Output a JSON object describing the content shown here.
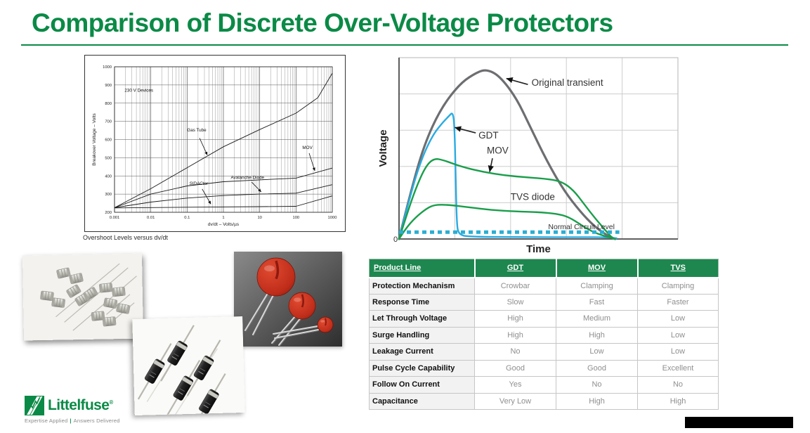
{
  "slide": {
    "title": "Comparison of Discrete Over-Voltage Protectors"
  },
  "colors": {
    "accent": "#0a8a46",
    "table_header": "#1e8750",
    "curve_gray": "#6d6e71",
    "curve_blue": "#29abe2",
    "curve_green": "#1a9e4b",
    "dotted_teal": "#2aaed2"
  },
  "chart_data": [
    {
      "type": "line",
      "title": "Overshoot Levels versus dv/dt",
      "xlabel": "dv/dt – Volts/µs",
      "ylabel": "Breakover Voltage – Volts",
      "x_scale": "log",
      "xlim": [
        0.001,
        1000
      ],
      "ylim": [
        200,
        1000
      ],
      "xticks": [
        "0.001",
        "0.01",
        "0.1",
        "1",
        "10",
        "100",
        "1000"
      ],
      "yticks": [
        200,
        300,
        400,
        500,
        600,
        700,
        800,
        900,
        1000
      ],
      "grid": "log-minor-vertical, major-horizontal",
      "series": [
        {
          "name": "Gas Tube",
          "points": [
            [
              0.001,
              225
            ],
            [
              0.01,
              330
            ],
            [
              0.1,
              445
            ],
            [
              1,
              560
            ],
            [
              10,
              655
            ],
            [
              100,
              745
            ],
            [
              400,
              830
            ],
            [
              1000,
              965
            ]
          ]
        },
        {
          "name": "MOV",
          "points": [
            [
              0.001,
              225
            ],
            [
              0.01,
              300
            ],
            [
              0.1,
              345
            ],
            [
              1,
              368
            ],
            [
              10,
              378
            ],
            [
              100,
              388
            ],
            [
              1000,
              443
            ]
          ]
        },
        {
          "name": "Avalanche Diode",
          "points": [
            [
              0.001,
              225
            ],
            [
              0.01,
              256
            ],
            [
              0.1,
              278
            ],
            [
              1,
              292
            ],
            [
              10,
              300
            ],
            [
              100,
              305
            ],
            [
              1000,
              352
            ]
          ]
        },
        {
          "name": "SIDACtor",
          "points": [
            [
              0.001,
              224
            ],
            [
              0.1,
              228
            ],
            [
              10,
              231
            ],
            [
              100,
              233
            ],
            [
              1000,
              290
            ]
          ]
        }
      ],
      "annotations": [
        {
          "text": "230 V Devices",
          "x": 0.0019,
          "y": 862,
          "italic": false
        },
        {
          "text": "Gas Tube",
          "x": 0.1,
          "y": 645,
          "italic": false
        },
        {
          "text": "SIDACtor",
          "x": 0.115,
          "y": 350,
          "italic": true
        },
        {
          "text": "Avalanche Diode",
          "x": 1.6,
          "y": 383,
          "italic": false
        },
        {
          "text": "MOV",
          "x": 150,
          "y": 548,
          "italic": false
        }
      ],
      "arrows": [
        {
          "from": [
            0.22,
            608
          ],
          "to": [
            0.36,
            515
          ]
        },
        {
          "from": [
            0.26,
            328
          ],
          "to": [
            0.45,
            245
          ]
        },
        {
          "from": [
            6,
            366
          ],
          "to": [
            11,
            312
          ]
        },
        {
          "from": [
            230,
            525
          ],
          "to": [
            330,
            428
          ]
        }
      ]
    },
    {
      "type": "line",
      "xlabel": "Time",
      "ylabel": "Voltage",
      "origin_label": "0",
      "xlim": [
        0,
        1
      ],
      "ylim": [
        0,
        1
      ],
      "grid": {
        "cols": 5,
        "rows": 5
      },
      "series": [
        {
          "name": "Original transient",
          "color": "#6d6e71",
          "width": 3.2,
          "points": [
            [
              0,
              0
            ],
            [
              0.04,
              0.25
            ],
            [
              0.09,
              0.52
            ],
            [
              0.15,
              0.72
            ],
            [
              0.22,
              0.86
            ],
            [
              0.28,
              0.92
            ],
            [
              0.315,
              0.935
            ],
            [
              0.36,
              0.9
            ],
            [
              0.42,
              0.78
            ],
            [
              0.47,
              0.62
            ],
            [
              0.53,
              0.43
            ],
            [
              0.59,
              0.27
            ],
            [
              0.65,
              0.15
            ],
            [
              0.7,
              0.07
            ],
            [
              0.745,
              0.02
            ],
            [
              0.775,
              0.0
            ]
          ]
        },
        {
          "name": "GDT",
          "color": "#29abe2",
          "width": 2.4,
          "points": [
            [
              0,
              0
            ],
            [
              0.04,
              0.24
            ],
            [
              0.08,
              0.44
            ],
            [
              0.12,
              0.57
            ],
            [
              0.155,
              0.64
            ],
            [
              0.18,
              0.68
            ],
            [
              0.193,
              0.7
            ],
            [
              0.199,
              0.62
            ],
            [
              0.203,
              0.35
            ],
            [
              0.207,
              0.08
            ],
            [
              0.214,
              0.025
            ],
            [
              0.25,
              0.012
            ],
            [
              0.45,
              0.01
            ],
            [
              0.65,
              0.01
            ],
            [
              0.74,
              0.01
            ],
            [
              0.78,
              0.004
            ]
          ]
        },
        {
          "name": "MOV",
          "color": "#1a9e4b",
          "width": 2.4,
          "points": [
            [
              0,
              0
            ],
            [
              0.025,
              0.12
            ],
            [
              0.06,
              0.28
            ],
            [
              0.095,
              0.4
            ],
            [
              0.125,
              0.445
            ],
            [
              0.16,
              0.435
            ],
            [
              0.22,
              0.4
            ],
            [
              0.3,
              0.37
            ],
            [
              0.38,
              0.35
            ],
            [
              0.46,
              0.34
            ],
            [
              0.54,
              0.33
            ],
            [
              0.585,
              0.315
            ],
            [
              0.625,
              0.27
            ],
            [
              0.665,
              0.19
            ],
            [
              0.705,
              0.11
            ],
            [
              0.75,
              0.03
            ],
            [
              0.765,
              0.005
            ]
          ]
        },
        {
          "name": "TVS diode",
          "color": "#1a9e4b",
          "width": 2.4,
          "points": [
            [
              0,
              0
            ],
            [
              0.025,
              0.06
            ],
            [
              0.06,
              0.12
            ],
            [
              0.1,
              0.17
            ],
            [
              0.13,
              0.19
            ],
            [
              0.18,
              0.188
            ],
            [
              0.25,
              0.175
            ],
            [
              0.33,
              0.16
            ],
            [
              0.42,
              0.152
            ],
            [
              0.5,
              0.148
            ],
            [
              0.565,
              0.14
            ],
            [
              0.61,
              0.12
            ],
            [
              0.655,
              0.075
            ],
            [
              0.7,
              0.035
            ],
            [
              0.745,
              0.012
            ],
            [
              0.775,
              0.0
            ]
          ]
        },
        {
          "name": "Normal Circuit Level",
          "color": "#2aaed2",
          "width": 5,
          "dash": "6 5",
          "points": [
            [
              0,
              0.038
            ],
            [
              0.79,
              0.038
            ]
          ]
        }
      ],
      "annotations": [
        {
          "text": "Original transient",
          "x": 0.475,
          "y": 0.845,
          "size": 13.5
        },
        {
          "text": "GDT",
          "x": 0.285,
          "y": 0.555,
          "size": 13.5
        },
        {
          "text": "MOV",
          "x": 0.315,
          "y": 0.47,
          "size": 13.5
        },
        {
          "text": "TVS diode",
          "x": 0.4,
          "y": 0.215,
          "size": 13.5
        },
        {
          "text": "Normal Circuit Level",
          "x": 0.535,
          "y": 0.055,
          "size": 10.5
        }
      ],
      "arrows": [
        {
          "from": [
            0.462,
            0.852
          ],
          "to": [
            0.385,
            0.885
          ]
        },
        {
          "from": [
            0.275,
            0.585
          ],
          "to": [
            0.2,
            0.615
          ]
        },
        {
          "from": [
            0.335,
            0.445
          ],
          "to": [
            0.325,
            0.37
          ]
        }
      ]
    }
  ],
  "table": {
    "columns": [
      "Product Line",
      "GDT",
      "MOV",
      "TVS"
    ],
    "rows": [
      {
        "label": "Protection Mechanism",
        "values": [
          "Crowbar",
          "Clamping",
          "Clamping"
        ]
      },
      {
        "label": "Response Time",
        "values": [
          "Slow",
          "Fast",
          "Faster"
        ]
      },
      {
        "label": "Let Through Voltage",
        "values": [
          "High",
          "Medium",
          "Low"
        ]
      },
      {
        "label": "Surge Handling",
        "values": [
          "High",
          "High",
          "Low"
        ]
      },
      {
        "label": "Leakage Current",
        "values": [
          "No",
          "Low",
          "Low"
        ]
      },
      {
        "label": "Pulse Cycle Capability",
        "values": [
          "Good",
          "Good",
          "Excellent"
        ]
      },
      {
        "label": "Follow On Current",
        "values": [
          "Yes",
          "No",
          "No"
        ]
      },
      {
        "label": "Capacitance",
        "values": [
          "Very Low",
          "High",
          "High"
        ]
      }
    ]
  },
  "logo": {
    "brand": "Littelfuse",
    "registered": "®",
    "tagline_a": "Expertise Applied",
    "tagline_divider": "|",
    "tagline_b": "Answers Delivered"
  }
}
